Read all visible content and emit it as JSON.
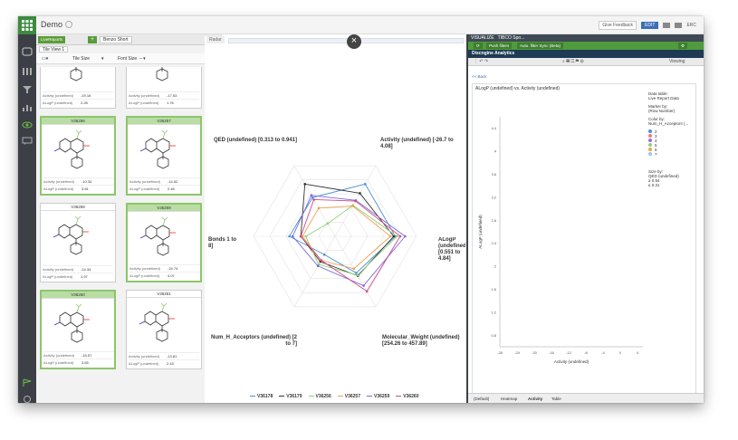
{
  "app": {
    "title": "Demo",
    "give_feedback": "Give Feedback",
    "edit": "EDIT",
    "user": "ERC"
  },
  "left": {
    "tab_live": "LiveReports",
    "tab_plus": "+",
    "tab_benzo": "Benzo Short",
    "tile_view": "Tile View 1",
    "tile_size": "Tile Size",
    "font_size": "Font Size",
    "tiles": [
      {
        "id": "",
        "activity": "-19.16",
        "alogp": "2.28",
        "sel": false
      },
      {
        "id": "",
        "activity": "-17.53",
        "alogp": "1.76",
        "sel": false
      },
      {
        "id": "V36256",
        "activity": "-10.34",
        "alogp": "3.81",
        "sel": true
      },
      {
        "id": "V36257",
        "activity": "-14.52",
        "alogp": "2.46",
        "sel": true
      },
      {
        "id": "V36258",
        "activity": "-14.34",
        "alogp": "1.97",
        "sel": false
      },
      {
        "id": "V36259",
        "activity": "-15.74",
        "alogp": "4.07",
        "sel": true
      },
      {
        "id": "V36260",
        "activity": "-15.57",
        "alogp": "3.65",
        "sel": true
      },
      {
        "id": "V36261",
        "activity": "-13.81",
        "alogp": "2.43",
        "sel": false
      }
    ],
    "activity_label": "Activity (undefined)",
    "alogp_label": "ALogP (undefined)"
  },
  "radar": {
    "tab": "Radar",
    "axes": [
      "QED (undefined) [0.313 to 0.941]",
      "Activity (undefined) [-26.7 to 4.08]",
      "ALogP (undefined) [0.551 to 4.84]",
      "Molecular_Weight (undefined) [254.26 to 457.89]",
      "Num_H_Acceptors (undefined) [2 to 7]",
      "Bonds 1 to 8]"
    ],
    "series": [
      {
        "name": "V36178",
        "color": "#4a8fd6",
        "values": [
          0.55,
          0.74,
          0.74,
          0.52,
          0.26,
          0.56
        ]
      },
      {
        "name": "V36179",
        "color": "#333333",
        "values": [
          0.74,
          0.61,
          0.72,
          0.56,
          0.36,
          0.42
        ]
      },
      {
        "name": "V36256",
        "color": "#8fd07a",
        "values": [
          0.18,
          0.44,
          0.76,
          0.55,
          0.4,
          0.36
        ]
      },
      {
        "name": "V36257",
        "color": "#f0a050",
        "values": [
          0.4,
          0.43,
          0.68,
          0.46,
          0.34,
          0.4
        ]
      },
      {
        "name": "V36259",
        "color": "#7a6ad6",
        "values": [
          0.58,
          0.51,
          0.86,
          0.7,
          0.42,
          0.52
        ]
      },
      {
        "name": "V36260",
        "color": "#d04a8a",
        "values": [
          0.52,
          0.5,
          0.8,
          0.78,
          0.34,
          0.42
        ]
      }
    ]
  },
  "spotfire": {
    "visualize": "VISUALIZE",
    "tibco": "TIBCO Spo...",
    "push_filters": "Push filters",
    "auto_filter": "Auto. filter Sync (Beta)",
    "title": "Discngine Analytics",
    "viewing": "Viewing",
    "back": "<< Back",
    "plot_title": "ALogP (undefined) vs. Activity (undefined)",
    "xlabel": "Activity (undefined)",
    "ylabel": "ALogP (undefined)",
    "side_table": "Data table:",
    "side_table_v": "Live Report Data",
    "side_marker": "Marker by:",
    "side_marker_v": "(Row Number)",
    "side_color": "Color by:",
    "side_color_v": "Num_H_Acceptors (...",
    "color_items": [
      "2",
      "3",
      "4",
      "5",
      "6",
      "7"
    ],
    "color_hex": [
      "#4a8fd6",
      "#e67c7c",
      "#a46ad6",
      "#8fd07a",
      "#f0a050",
      "#9ec5e8"
    ],
    "side_size": "Size by:",
    "side_size_v": "QED (undefined)",
    "size_hi": "≥ 0.94",
    "size_lo": "≤ 0.31",
    "tabs": [
      "(Default)",
      "Heatmap",
      "Activity",
      "Table"
    ]
  }
}
